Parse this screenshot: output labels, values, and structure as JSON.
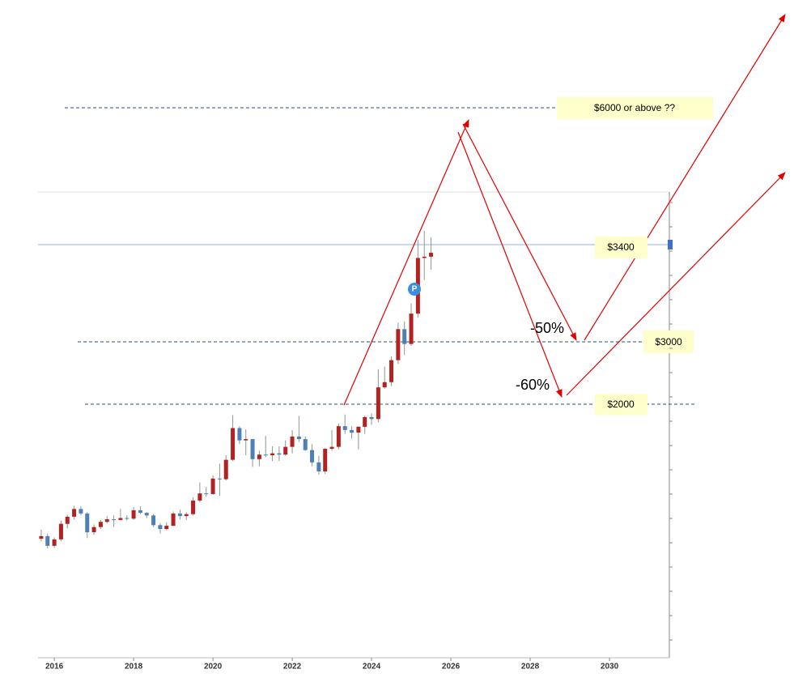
{
  "chart_data": {
    "type": "candlestick",
    "x": [
      2015.67,
      2015.83,
      2016.0,
      2016.17,
      2016.33,
      2016.5,
      2016.67,
      2016.83,
      2017.0,
      2017.17,
      2017.33,
      2017.5,
      2017.67,
      2017.83,
      2018.0,
      2018.17,
      2018.33,
      2018.5,
      2018.67,
      2018.83,
      2019.0,
      2019.17,
      2019.33,
      2019.5,
      2019.67,
      2019.83,
      2020.0,
      2020.17,
      2020.33,
      2020.5,
      2020.67,
      2020.83,
      2021.0,
      2021.17,
      2021.33,
      2021.5,
      2021.67,
      2021.83,
      2022.0,
      2022.17,
      2022.33,
      2022.5,
      2022.67,
      2022.83,
      2023.0,
      2023.17,
      2023.33,
      2023.5,
      2023.67,
      2023.83,
      2024.0,
      2024.17,
      2024.33,
      2024.5,
      2024.67,
      2024.83,
      2025.0,
      2025.17,
      2025.33,
      2025.5
    ],
    "open": [
      1120,
      1140,
      1065,
      1115,
      1235,
      1290,
      1350,
      1315,
      1170,
      1210,
      1250,
      1270,
      1265,
      1280,
      1275,
      1340,
      1320,
      1300,
      1225,
      1195,
      1220,
      1315,
      1295,
      1310,
      1415,
      1470,
      1465,
      1585,
      1580,
      1730,
      1975,
      1880,
      1890,
      1735,
      1770,
      1765,
      1780,
      1770,
      1830,
      1910,
      1890,
      1805,
      1710,
      1640,
      1815,
      1830,
      1990,
      1960,
      1940,
      1985,
      2060,
      2045,
      2290,
      2330,
      2500,
      2740,
      2625,
      2860,
      3290,
      3300
    ],
    "high": [
      1190,
      1160,
      1130,
      1260,
      1305,
      1375,
      1370,
      1325,
      1230,
      1265,
      1295,
      1300,
      1350,
      1300,
      1365,
      1370,
      1325,
      1310,
      1240,
      1245,
      1330,
      1345,
      1325,
      1440,
      1555,
      1520,
      1610,
      1700,
      1765,
      2075,
      1990,
      1965,
      1875,
      1800,
      1915,
      1835,
      1835,
      1880,
      1960,
      2070,
      1910,
      1850,
      1760,
      1820,
      1960,
      2010,
      2080,
      1990,
      1990,
      2070,
      2090,
      2430,
      2450,
      2530,
      2790,
      2800,
      2940,
      3430,
      3500,
      3450
    ],
    "low": [
      1100,
      1045,
      1050,
      1100,
      1200,
      1270,
      1300,
      1125,
      1150,
      1195,
      1240,
      1210,
      1260,
      1260,
      1265,
      1310,
      1280,
      1210,
      1160,
      1185,
      1215,
      1270,
      1265,
      1300,
      1400,
      1445,
      1460,
      1450,
      1570,
      1720,
      1850,
      1765,
      1675,
      1680,
      1750,
      1720,
      1720,
      1760,
      1780,
      1870,
      1800,
      1680,
      1615,
      1620,
      1800,
      1810,
      1930,
      1895,
      1810,
      1930,
      2000,
      2020,
      2280,
      2300,
      2470,
      2540,
      2610,
      2830,
      3120,
      3200
    ],
    "close": [
      1140,
      1065,
      1115,
      1235,
      1290,
      1350,
      1315,
      1170,
      1210,
      1250,
      1270,
      1265,
      1280,
      1275,
      1340,
      1320,
      1300,
      1225,
      1195,
      1220,
      1315,
      1295,
      1310,
      1415,
      1470,
      1465,
      1585,
      1580,
      1730,
      1975,
      1880,
      1890,
      1735,
      1770,
      1765,
      1780,
      1770,
      1830,
      1910,
      1890,
      1805,
      1710,
      1640,
      1815,
      1830,
      1990,
      1960,
      1940,
      1985,
      2060,
      2045,
      2290,
      2330,
      2500,
      2740,
      2625,
      2860,
      3290,
      3300,
      3330
    ],
    "up_color": "#b22222",
    "down_color": "#4f7fb5",
    "wick_color": "#8a9a8a",
    "xlim": [
      2015.59,
      2031.51
    ],
    "xticks": [
      2016,
      2018,
      2020,
      2022,
      2024,
      2026,
      2028,
      2030
    ],
    "ylim": [
      200,
      3800
    ],
    "annotations": {
      "target": "$6000 or above ??",
      "level_3400": "$3400",
      "level_3000": "$3000",
      "level_2000": "$2000",
      "drop_50": "-50%",
      "drop_60": "-60%",
      "marker": "P"
    }
  }
}
